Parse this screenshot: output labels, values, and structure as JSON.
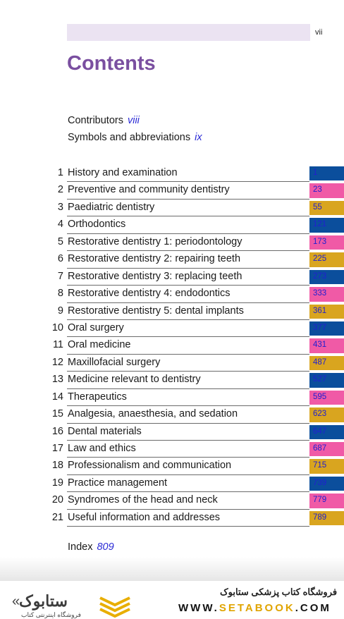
{
  "header": {
    "page_number": "vii"
  },
  "title": "Contents",
  "front_matter": [
    {
      "label": "Contributors",
      "page": "viii"
    },
    {
      "label": "Symbols and abbreviations",
      "page": "ix"
    }
  ],
  "chapters": [
    {
      "num": "1",
      "title": "History and examination",
      "page": "1",
      "color": "#0b4e9c"
    },
    {
      "num": "2",
      "title": "Preventive and community dentistry",
      "page": "23",
      "color": "#f05aa6"
    },
    {
      "num": "3",
      "title": "Paediatric dentistry",
      "page": "55",
      "color": "#d9a51f"
    },
    {
      "num": "4",
      "title": "Orthodontics",
      "page": "121",
      "color": "#0b4e9c"
    },
    {
      "num": "5",
      "title": "Restorative dentistry 1: periodontology",
      "page": "173",
      "color": "#f05aa6"
    },
    {
      "num": "6",
      "title": "Restorative dentistry 2: repairing teeth",
      "page": "225",
      "color": "#d9a51f"
    },
    {
      "num": "7",
      "title": "Restorative dentistry 3: replacing teeth",
      "page": "273",
      "color": "#0b4e9c"
    },
    {
      "num": "8",
      "title": "Restorative dentistry 4: endodontics",
      "page": "333",
      "color": "#f05aa6"
    },
    {
      "num": "9",
      "title": "Restorative dentistry 5: dental implants",
      "page": "361",
      "color": "#d9a51f"
    },
    {
      "num": "10",
      "title": "Oral surgery",
      "page": "377",
      "color": "#0b4e9c"
    },
    {
      "num": "11",
      "title": "Oral medicine",
      "page": "431",
      "color": "#f05aa6"
    },
    {
      "num": "12",
      "title": "Maxillofacial surgery",
      "page": "487",
      "color": "#d9a51f"
    },
    {
      "num": "13",
      "title": "Medicine relevant to dentistry",
      "page": "527",
      "color": "#0b4e9c"
    },
    {
      "num": "14",
      "title": "Therapeutics",
      "page": "595",
      "color": "#f05aa6"
    },
    {
      "num": "15",
      "title": "Analgesia, anaesthesia, and sedation",
      "page": "623",
      "color": "#d9a51f"
    },
    {
      "num": "16",
      "title": "Dental materials",
      "page": "647",
      "color": "#0b4e9c"
    },
    {
      "num": "17",
      "title": "Law and ethics",
      "page": "687",
      "color": "#f05aa6"
    },
    {
      "num": "18",
      "title": "Professionalism and communication",
      "page": "715",
      "color": "#d9a51f"
    },
    {
      "num": "19",
      "title": "Practice management",
      "page": "739",
      "color": "#0b4e9c"
    },
    {
      "num": "20",
      "title": "Syndromes of the head and neck",
      "page": "779",
      "color": "#f05aa6"
    },
    {
      "num": "21",
      "title": "Useful information and addresses",
      "page": "789",
      "color": "#d9a51f"
    }
  ],
  "index": {
    "label": "Index",
    "page": "809"
  },
  "footer": {
    "brand_name": "ستابوک",
    "brand_tagline": "فروشگاه اینترنتی کتاب",
    "store_name": "فروشگاه کتاب پزشکی ستابوک",
    "url_prefix": "WWW.",
    "url_highlight": "SETABOOK",
    "url_suffix": ".COM"
  }
}
